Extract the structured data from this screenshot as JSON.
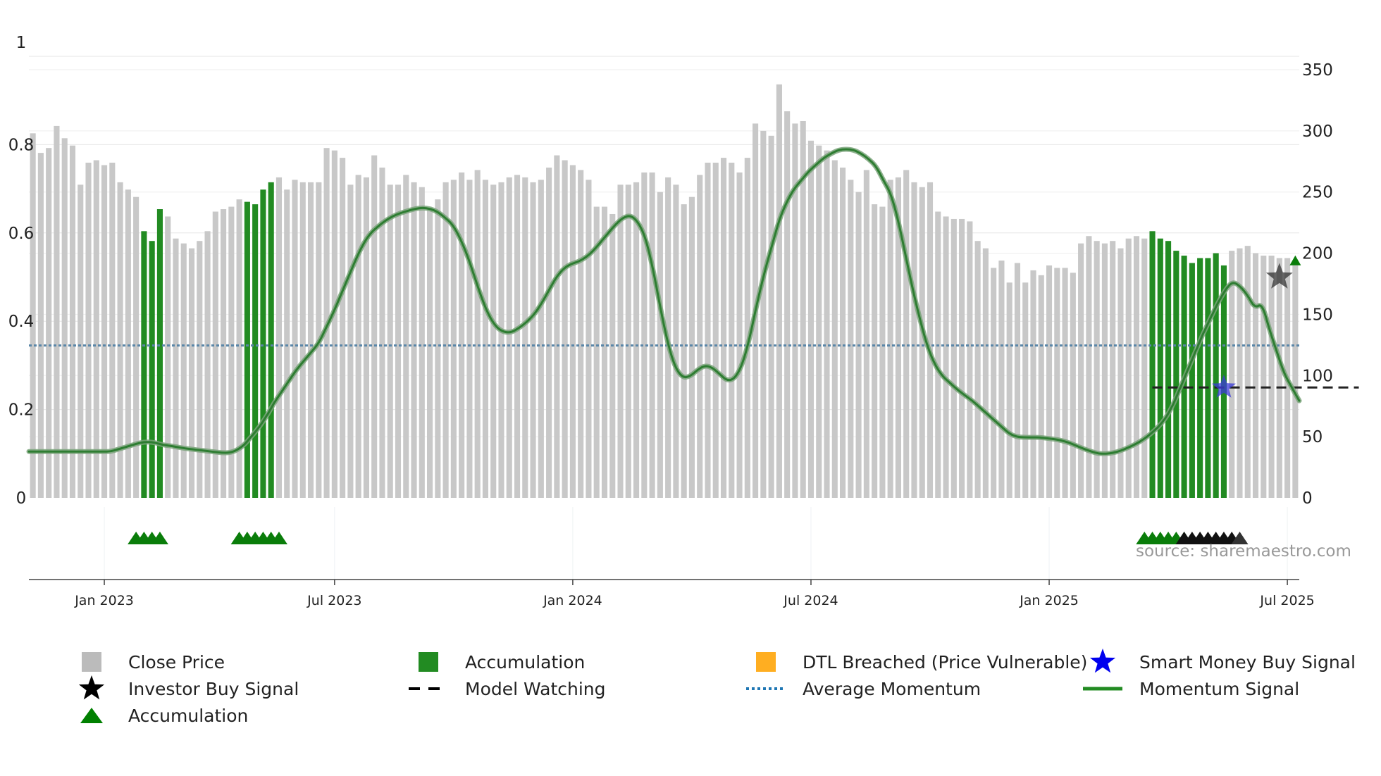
{
  "chart_data": {
    "type": "bar",
    "source_text": "source: sharemaestro.com",
    "x_ticks": [
      "Jan 2023",
      "Jul 2023",
      "Jan 2024",
      "Jul 2024",
      "Jan 2025",
      "Jul 2025"
    ],
    "y_left": {
      "ticks": [
        "0",
        "0.2",
        "0.4",
        "0.6",
        "0.8",
        "1"
      ],
      "range": [
        0,
        1
      ]
    },
    "y_right": {
      "ticks": [
        "0",
        "50",
        "100",
        "150",
        "200",
        "250",
        "300",
        "350"
      ],
      "range": [
        0,
        350
      ]
    },
    "close_price": [
      298,
      282,
      286,
      304,
      294,
      288,
      256,
      274,
      276,
      272,
      274,
      258,
      252,
      246,
      218,
      210,
      236,
      230,
      212,
      208,
      204,
      210,
      218,
      234,
      236,
      238,
      244,
      242,
      240,
      252,
      258,
      262,
      252,
      260,
      258,
      258,
      258,
      286,
      284,
      278,
      256,
      264,
      262,
      280,
      270,
      256,
      256,
      264,
      258,
      254,
      236,
      244,
      258,
      260,
      266,
      260,
      268,
      260,
      256,
      258,
      262,
      264,
      262,
      258,
      260,
      270,
      280,
      276,
      272,
      268,
      260,
      238,
      238,
      232,
      256,
      256,
      258,
      266,
      266,
      250,
      262,
      256,
      240,
      246,
      264,
      274,
      274,
      278,
      274,
      266,
      278,
      306,
      300,
      296,
      338,
      316,
      306,
      308,
      292,
      288,
      284,
      276,
      270,
      260,
      250,
      268,
      240,
      238,
      260,
      262,
      268,
      258,
      254,
      258,
      234,
      230,
      228,
      228,
      226,
      210,
      204,
      188,
      194,
      176,
      192,
      176,
      186,
      182,
      190,
      188,
      188,
      184,
      208,
      214,
      210,
      208,
      210,
      204,
      212,
      214,
      212,
      218,
      212,
      210,
      202,
      198,
      192,
      196,
      196,
      200,
      190,
      202,
      204,
      206,
      200,
      198,
      198,
      196,
      196,
      193
    ],
    "accumulation_bars": [
      [
        14,
        16
      ],
      [
        27,
        30
      ],
      [
        141,
        150
      ]
    ],
    "momentum": [
      0.105,
      0.105,
      0.105,
      0.105,
      0.105,
      0.105,
      0.105,
      0.105,
      0.105,
      0.105,
      0.105,
      0.105,
      0.11,
      0.115,
      0.12,
      0.125,
      0.127,
      0.125,
      0.12,
      0.118,
      0.115,
      0.112,
      0.11,
      0.108,
      0.106,
      0.104,
      0.102,
      0.102,
      0.108,
      0.12,
      0.14,
      0.16,
      0.185,
      0.215,
      0.24,
      0.265,
      0.29,
      0.31,
      0.33,
      0.35,
      0.385,
      0.42,
      0.46,
      0.5,
      0.54,
      0.575,
      0.6,
      0.615,
      0.628,
      0.638,
      0.645,
      0.65,
      0.655,
      0.657,
      0.655,
      0.648,
      0.635,
      0.62,
      0.59,
      0.55,
      0.5,
      0.45,
      0.41,
      0.385,
      0.375,
      0.375,
      0.385,
      0.398,
      0.415,
      0.44,
      0.47,
      0.5,
      0.52,
      0.53,
      0.535,
      0.545,
      0.56,
      0.58,
      0.6,
      0.62,
      0.635,
      0.64,
      0.625,
      0.59,
      0.52,
      0.43,
      0.35,
      0.295,
      0.272,
      0.275,
      0.29,
      0.3,
      0.295,
      0.28,
      0.265,
      0.27,
      0.3,
      0.36,
      0.44,
      0.51,
      0.57,
      0.63,
      0.67,
      0.7,
      0.72,
      0.74,
      0.755,
      0.77,
      0.78,
      0.788,
      0.79,
      0.788,
      0.78,
      0.768,
      0.752,
      0.72,
      0.69,
      0.63,
      0.55,
      0.47,
      0.4,
      0.34,
      0.3,
      0.275,
      0.26,
      0.245,
      0.232,
      0.22,
      0.205,
      0.19,
      0.175,
      0.16,
      0.145,
      0.138,
      0.137,
      0.137,
      0.137,
      0.135,
      0.133,
      0.13,
      0.125,
      0.118,
      0.111,
      0.105,
      0.1,
      0.1,
      0.102,
      0.107,
      0.114,
      0.122,
      0.132,
      0.145,
      0.16,
      0.18,
      0.21,
      0.25,
      0.29,
      0.33,
      0.37,
      0.405,
      0.44,
      0.47,
      0.49,
      0.48,
      0.46,
      0.43,
      0.44,
      0.38,
      0.33,
      0.28,
      0.25,
      0.22
    ],
    "average_momentum": 0.345,
    "model_watching": {
      "start_week": 141,
      "end_week": 167,
      "level": 0.25
    },
    "markers": {
      "accumulation_triangles": [
        [
          13,
          16
        ],
        [
          26,
          31
        ],
        [
          140,
          145
        ]
      ],
      "investor_triangles": [
        145,
        152
      ],
      "smart_money_star": {
        "week": 150,
        "value": 0.25
      },
      "investor_star": {
        "week": 157,
        "value": 0.5
      },
      "momentum_peak_triangle": {
        "week": 159,
        "value": 0.53
      }
    },
    "legend": [
      {
        "key": "close",
        "label": "Close Price",
        "symbol": "square",
        "color": "#bbbbbb"
      },
      {
        "key": "accum",
        "label": "Accumulation",
        "symbol": "square",
        "color": "#228b22"
      },
      {
        "key": "dtl",
        "label": "DTL Breached (Price Vulnerable)",
        "symbol": "square",
        "color": "#ffae21"
      },
      {
        "key": "smart",
        "label": "Smart Money Buy Signal",
        "symbol": "star",
        "color": "#0000ee"
      },
      {
        "key": "investor",
        "label": "Investor Buy Signal",
        "symbol": "star",
        "color": "#000000"
      },
      {
        "key": "watch",
        "label": "Model Watching",
        "symbol": "dash",
        "color": "#000000"
      },
      {
        "key": "avg",
        "label": "Average Momentum",
        "symbol": "dot",
        "color": "#1f77b4"
      },
      {
        "key": "mom",
        "label": "Momentum Signal",
        "symbol": "line",
        "color": "#228b22"
      },
      {
        "key": "acctri",
        "label": "Accumulation",
        "symbol": "triangle",
        "color": "#008000"
      }
    ]
  }
}
